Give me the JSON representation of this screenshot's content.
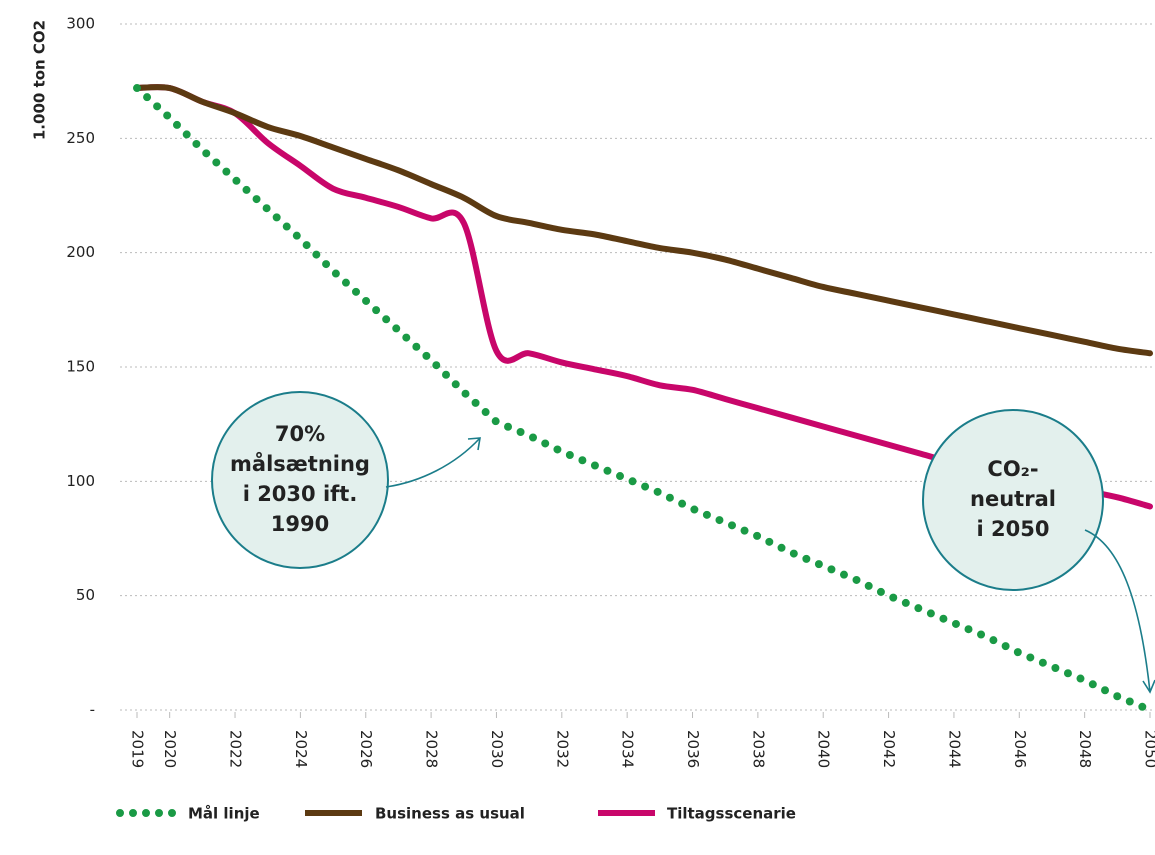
{
  "chart_data": {
    "type": "line",
    "y_label": "1.000 ton CO2",
    "x": [
      2019,
      2020,
      2021,
      2022,
      2023,
      2024,
      2025,
      2026,
      2027,
      2028,
      2029,
      2030,
      2031,
      2032,
      2033,
      2034,
      2035,
      2036,
      2037,
      2038,
      2039,
      2040,
      2041,
      2042,
      2043,
      2044,
      2045,
      2046,
      2047,
      2048,
      2049,
      2050
    ],
    "series": [
      {
        "name": "Mål linje",
        "color": "#1a9a45",
        "style": "dotted",
        "values": [
          272,
          259,
          245,
          232,
          219,
          206,
          192,
          179,
          166,
          153,
          139,
          126,
          120,
          113,
          107,
          101,
          95,
          88,
          82,
          76,
          69,
          63,
          57,
          50,
          44,
          38,
          32,
          25,
          19,
          13,
          6,
          0
        ]
      },
      {
        "name": "Business as usual",
        "color": "#5c3a12",
        "style": "solid",
        "values": [
          272,
          272,
          266,
          261,
          255,
          251,
          246,
          241,
          236,
          230,
          224,
          216,
          213,
          210,
          208,
          205,
          202,
          200,
          197,
          193,
          189,
          185,
          182,
          179,
          176,
          173,
          170,
          167,
          164,
          161,
          158,
          156
        ]
      },
      {
        "name": "Tiltagsscenarie",
        "color": "#c8066a",
        "style": "solid",
        "values": [
          272,
          272,
          266,
          261,
          248,
          238,
          228,
          224,
          220,
          215,
          213,
          157,
          156,
          152,
          149,
          146,
          142,
          140,
          136,
          132,
          128,
          124,
          120,
          116,
          112,
          108,
          105,
          102,
          99,
          96,
          93,
          89
        ]
      }
    ],
    "xlim": [
      2019,
      2050
    ],
    "xticks": [
      2019,
      2020,
      2022,
      2024,
      2026,
      2028,
      2030,
      2032,
      2034,
      2036,
      2038,
      2040,
      2042,
      2044,
      2046,
      2048,
      2050
    ],
    "ylim": [
      0,
      300
    ],
    "yticks": [
      {
        "value": 0,
        "label": "-"
      },
      50,
      100,
      150,
      200,
      250,
      300
    ],
    "grid": true,
    "annotations": [
      {
        "lines": [
          "70%",
          "målsætning",
          "i 2030 ift.",
          "1990"
        ]
      },
      {
        "lines": [
          "CO₂-",
          "neutral",
          "i 2050"
        ]
      }
    ]
  }
}
